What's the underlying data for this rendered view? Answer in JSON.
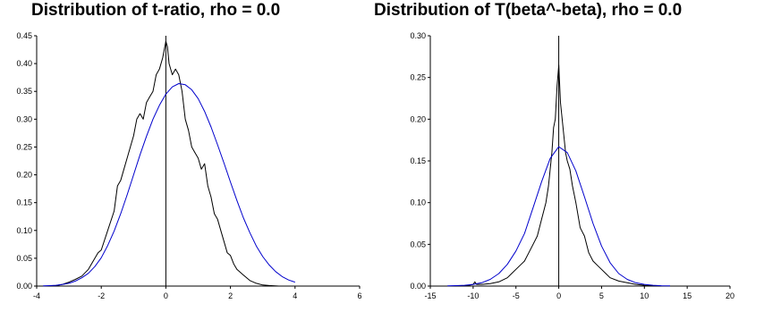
{
  "chart_data": [
    {
      "type": "line",
      "title": "Distribution of t-ratio, rho = 0.0",
      "xlim": [
        -4,
        6
      ],
      "ylim": [
        0,
        0.45
      ],
      "xticks": [
        -4,
        -2,
        0,
        2,
        4,
        6
      ],
      "yticks": [
        "0.00",
        "0.05",
        "0.10",
        "0.15",
        "0.20",
        "0.25",
        "0.30",
        "0.35",
        "0.40",
        "0.45"
      ],
      "series": [
        {
          "color": "#000000",
          "x": [
            -3.8,
            -3.5,
            -3.2,
            -3.0,
            -2.8,
            -2.6,
            -2.4,
            -2.2,
            -2.1,
            -2.0,
            -1.8,
            -1.6,
            -1.5,
            -1.4,
            -1.3,
            -1.2,
            -1.1,
            -1.0,
            -0.9,
            -0.8,
            -0.7,
            -0.6,
            -0.5,
            -0.4,
            -0.3,
            -0.2,
            -0.1,
            0.0,
            0.05,
            0.1,
            0.2,
            0.3,
            0.4,
            0.5,
            0.6,
            0.7,
            0.8,
            0.9,
            1.0,
            1.1,
            1.2,
            1.3,
            1.4,
            1.5,
            1.6,
            1.7,
            1.8,
            1.9,
            2.0,
            2.1,
            2.2,
            2.4,
            2.6,
            2.8,
            3.0,
            3.2,
            3.5,
            4.0,
            4.3
          ],
          "y": [
            0.0,
            0.0,
            0.003,
            0.007,
            0.012,
            0.018,
            0.03,
            0.05,
            0.06,
            0.065,
            0.1,
            0.135,
            0.18,
            0.19,
            0.21,
            0.23,
            0.25,
            0.27,
            0.3,
            0.31,
            0.3,
            0.33,
            0.34,
            0.35,
            0.38,
            0.39,
            0.41,
            0.44,
            0.43,
            0.4,
            0.38,
            0.39,
            0.38,
            0.35,
            0.3,
            0.28,
            0.25,
            0.24,
            0.23,
            0.21,
            0.22,
            0.18,
            0.16,
            0.13,
            0.12,
            0.1,
            0.08,
            0.06,
            0.055,
            0.04,
            0.03,
            0.02,
            0.01,
            0.005,
            0.002,
            0.001,
            0.0,
            0.0,
            0.0
          ]
        },
        {
          "color": "#0000cc",
          "x": [
            -3.8,
            -3.6,
            -3.4,
            -3.2,
            -3.0,
            -2.8,
            -2.6,
            -2.4,
            -2.2,
            -2.0,
            -1.8,
            -1.6,
            -1.4,
            -1.2,
            -1.0,
            -0.8,
            -0.6,
            -0.4,
            -0.2,
            0.0,
            0.2,
            0.4,
            0.6,
            0.8,
            1.0,
            1.2,
            1.4,
            1.6,
            1.8,
            2.0,
            2.2,
            2.4,
            2.6,
            2.8,
            3.0,
            3.2,
            3.4,
            3.6,
            3.8,
            4.0
          ],
          "y": [
            0.0004,
            0.0008,
            0.0015,
            0.003,
            0.005,
            0.009,
            0.015,
            0.023,
            0.035,
            0.051,
            0.073,
            0.099,
            0.13,
            0.164,
            0.2,
            0.236,
            0.269,
            0.3,
            0.325,
            0.345,
            0.358,
            0.364,
            0.362,
            0.353,
            0.337,
            0.314,
            0.286,
            0.254,
            0.221,
            0.187,
            0.154,
            0.123,
            0.096,
            0.072,
            0.053,
            0.038,
            0.026,
            0.017,
            0.011,
            0.007
          ]
        }
      ]
    },
    {
      "type": "line",
      "title": "Distribution of T(beta^-beta), rho = 0.0",
      "xlim": [
        -15,
        20
      ],
      "ylim": [
        0,
        0.3
      ],
      "xticks": [
        -15,
        -10,
        -5,
        0,
        5,
        10,
        15,
        20
      ],
      "yticks": [
        "0.00",
        "0.05",
        "0.10",
        "0.15",
        "0.20",
        "0.25",
        "0.30"
      ],
      "series": [
        {
          "color": "#000000",
          "x": [
            -13,
            -11,
            -10,
            -9.8,
            -9.6,
            -9,
            -8,
            -7,
            -6,
            -5.5,
            -5,
            -4.5,
            -4,
            -3.5,
            -3,
            -2.5,
            -2,
            -1.5,
            -1.2,
            -1,
            -0.8,
            -0.6,
            -0.4,
            -0.2,
            0,
            0.2,
            0.4,
            0.6,
            0.8,
            1,
            1.3,
            1.6,
            2,
            2.5,
            3,
            3.5,
            4,
            4.5,
            5,
            5.5,
            6,
            7,
            8,
            9,
            10,
            12,
            15,
            18
          ],
          "y": [
            0,
            0.0,
            0.002,
            0.005,
            0.002,
            0.002,
            0.003,
            0.005,
            0.01,
            0.015,
            0.02,
            0.025,
            0.03,
            0.04,
            0.05,
            0.06,
            0.08,
            0.1,
            0.12,
            0.14,
            0.16,
            0.19,
            0.2,
            0.24,
            0.265,
            0.22,
            0.2,
            0.18,
            0.16,
            0.15,
            0.14,
            0.12,
            0.1,
            0.07,
            0.06,
            0.04,
            0.03,
            0.025,
            0.02,
            0.015,
            0.01,
            0.006,
            0.004,
            0.002,
            0.001,
            0.0,
            0.0,
            0.0
          ]
        },
        {
          "color": "#0000cc",
          "x": [
            -13,
            -12,
            -11,
            -10,
            -9,
            -8,
            -7,
            -6,
            -5,
            -4,
            -3,
            -2,
            -1,
            0,
            1,
            2,
            3,
            4,
            5,
            6,
            7,
            8,
            9,
            10,
            11,
            12,
            13
          ],
          "y": [
            0.0002,
            0.0005,
            0.001,
            0.002,
            0.004,
            0.008,
            0.015,
            0.026,
            0.042,
            0.063,
            0.094,
            0.125,
            0.153,
            0.167,
            0.16,
            0.138,
            0.107,
            0.075,
            0.048,
            0.028,
            0.015,
            0.008,
            0.004,
            0.002,
            0.001,
            0.0004,
            0.0002
          ]
        }
      ]
    }
  ]
}
